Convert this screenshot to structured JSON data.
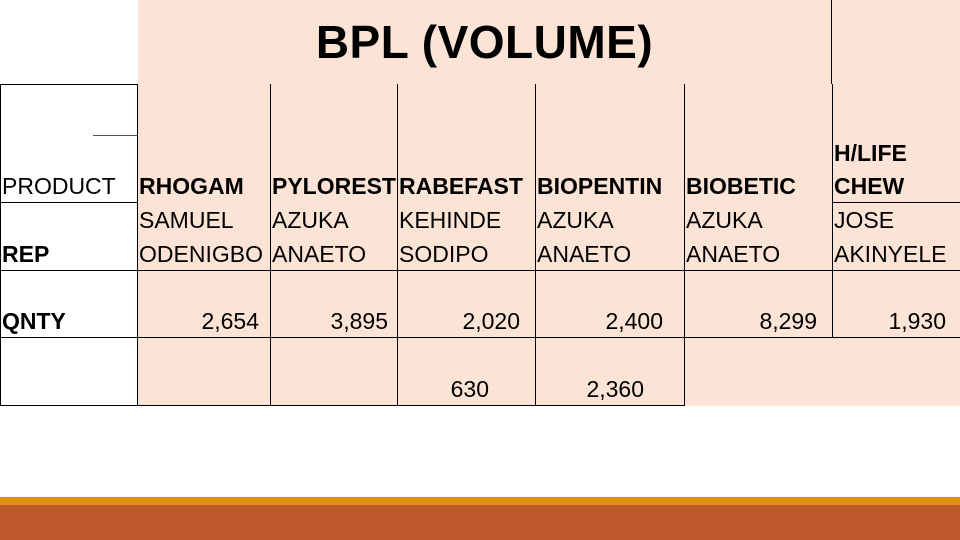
{
  "title": "BPL (VOLUME)",
  "row_labels": {
    "product": "PRODUCT",
    "rep": "REP",
    "qnty": "QNTY"
  },
  "columns": [
    {
      "product": "RHOGAM",
      "rep_first": "SAMUEL",
      "rep_last": "ODENIGBO",
      "qnty": "2,654",
      "extra": ""
    },
    {
      "product": "PYLOREST",
      "rep_first": "AZUKA",
      "rep_last": "ANAETO",
      "qnty": "3,895",
      "extra": ""
    },
    {
      "product": "RABEFAST",
      "rep_first": "KEHINDE",
      "rep_last": "SODIPO",
      "qnty": "2,020",
      "extra": "630"
    },
    {
      "product": "BIOPENTIN",
      "rep_first": "AZUKA",
      "rep_last": "ANAETO",
      "qnty": "2,400",
      "extra": "2,360"
    },
    {
      "product": "BIOBETIC",
      "rep_first": "AZUKA",
      "rep_last": "ANAETO",
      "qnty": "8,299",
      "extra": ""
    },
    {
      "product_line1": "H/LIFE",
      "product": "CHEW",
      "rep_first": "JOSE",
      "rep_last": "AKINYELE",
      "qnty": "1,930",
      "extra": ""
    }
  ],
  "colors": {
    "cell_fill": "#fbe3d6",
    "stripe_gold": "#e2900f",
    "stripe_rust": "#bd582b"
  }
}
